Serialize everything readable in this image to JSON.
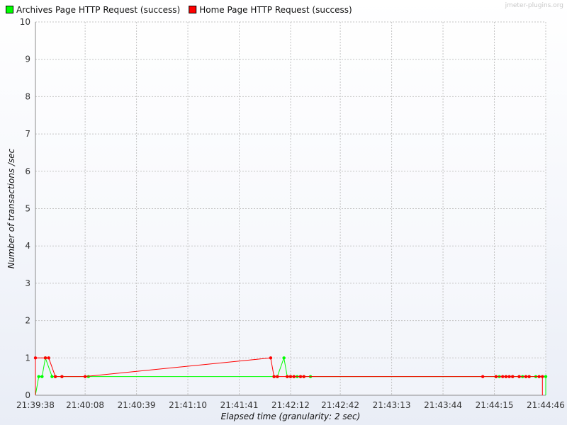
{
  "watermark": "jmeter-plugins.org",
  "chart_data": {
    "type": "line",
    "xlabel": "Elapsed time (granularity: 2 sec)",
    "ylabel": "Number of transactions /sec",
    "ylim": [
      0,
      10
    ],
    "yticks": [
      "0",
      "1",
      "2",
      "3",
      "4",
      "5",
      "6",
      "7",
      "8",
      "9",
      "10"
    ],
    "xticks": [
      "21:39:38",
      "21:40:08",
      "21:40:39",
      "21:41:10",
      "21:41:41",
      "21:42:12",
      "21:42:42",
      "21:43:13",
      "21:43:44",
      "21:44:15",
      "21:44:46"
    ],
    "xlim": [
      "21:39:38",
      "21:44:46"
    ],
    "grid": true,
    "legend_position": "top-left",
    "series": [
      {
        "name": "Archives Page HTTP Request (success)",
        "color": "#00ff00",
        "points": [
          [
            "21:39:38",
            0
          ],
          [
            "21:39:40",
            0.5
          ],
          [
            "21:39:42",
            0.5
          ],
          [
            "21:39:44",
            1
          ],
          [
            "21:39:48",
            0.5
          ],
          [
            "21:39:50",
            0.5
          ],
          [
            "21:39:54",
            0.5
          ],
          [
            "21:40:10",
            0.5
          ],
          [
            "21:42:02",
            0.5
          ],
          [
            "21:42:04",
            0.5
          ],
          [
            "21:42:08",
            1
          ],
          [
            "21:42:10",
            0.5
          ],
          [
            "21:42:12",
            0.5
          ],
          [
            "21:42:14",
            0.5
          ],
          [
            "21:42:16",
            0.5
          ],
          [
            "21:42:18",
            0.5
          ],
          [
            "21:42:20",
            0.5
          ],
          [
            "21:42:24",
            0.5
          ],
          [
            "21:44:16",
            0.5
          ],
          [
            "21:44:18",
            0.5
          ],
          [
            "21:44:22",
            0.5
          ],
          [
            "21:44:26",
            0.5
          ],
          [
            "21:44:30",
            0.5
          ],
          [
            "21:44:32",
            0.5
          ],
          [
            "21:44:34",
            0.5
          ],
          [
            "21:44:36",
            0.5
          ],
          [
            "21:44:40",
            0.5
          ],
          [
            "21:44:46",
            0.5
          ],
          [
            "21:44:46",
            0
          ]
        ]
      },
      {
        "name": "Home Page HTTP Request (success)",
        "color": "#ff0000",
        "points": [
          [
            "21:39:38",
            0
          ],
          [
            "21:39:38",
            1
          ],
          [
            "21:39:44",
            1
          ],
          [
            "21:39:46",
            1
          ],
          [
            "21:39:50",
            0.5
          ],
          [
            "21:39:54",
            0.5
          ],
          [
            "21:40:08",
            0.5
          ],
          [
            "21:42:00",
            1
          ],
          [
            "21:42:02",
            0.5
          ],
          [
            "21:42:04",
            0.5
          ],
          [
            "21:42:10",
            0.5
          ],
          [
            "21:42:12",
            0.5
          ],
          [
            "21:42:14",
            0.5
          ],
          [
            "21:42:18",
            0.5
          ],
          [
            "21:42:20",
            0.5
          ],
          [
            "21:44:08",
            0.5
          ],
          [
            "21:44:16",
            0.5
          ],
          [
            "21:44:20",
            0.5
          ],
          [
            "21:44:22",
            0.5
          ],
          [
            "21:44:24",
            0.5
          ],
          [
            "21:44:26",
            0.5
          ],
          [
            "21:44:30",
            0.5
          ],
          [
            "21:44:34",
            0.5
          ],
          [
            "21:44:36",
            0.5
          ],
          [
            "21:44:42",
            0.5
          ],
          [
            "21:44:44",
            0.5
          ],
          [
            "21:44:44",
            0
          ]
        ]
      }
    ]
  }
}
